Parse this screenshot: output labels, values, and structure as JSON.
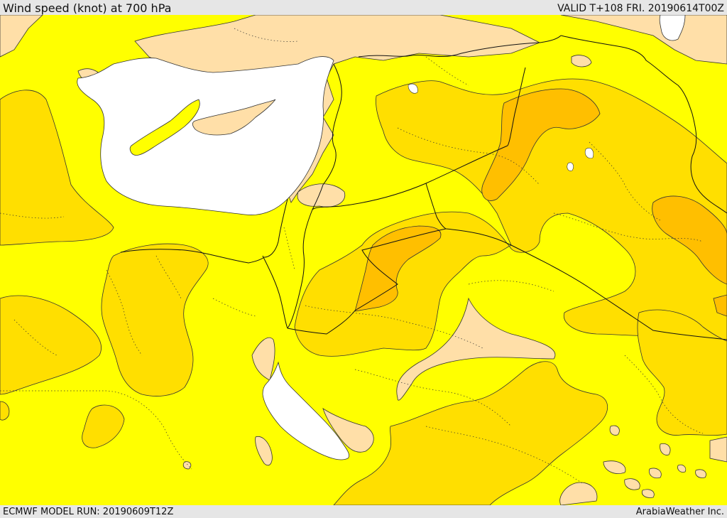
{
  "header": {
    "title": "Wind speed (knot) at 700 hPa",
    "valid": "VALID T+108 FRI. 20190614T00Z"
  },
  "footer": {
    "model_run": "ECMWF MODEL RUN: 20190609T12Z",
    "credit": "ArabiaWeather Inc."
  },
  "colors": {
    "level_0": "#ffdfa8",
    "level_1": "#ffff00",
    "level_2": "#ffdf00",
    "level_3": "#ffbf00",
    "sea": "#ffffff",
    "background": "#e6e6e6"
  }
}
